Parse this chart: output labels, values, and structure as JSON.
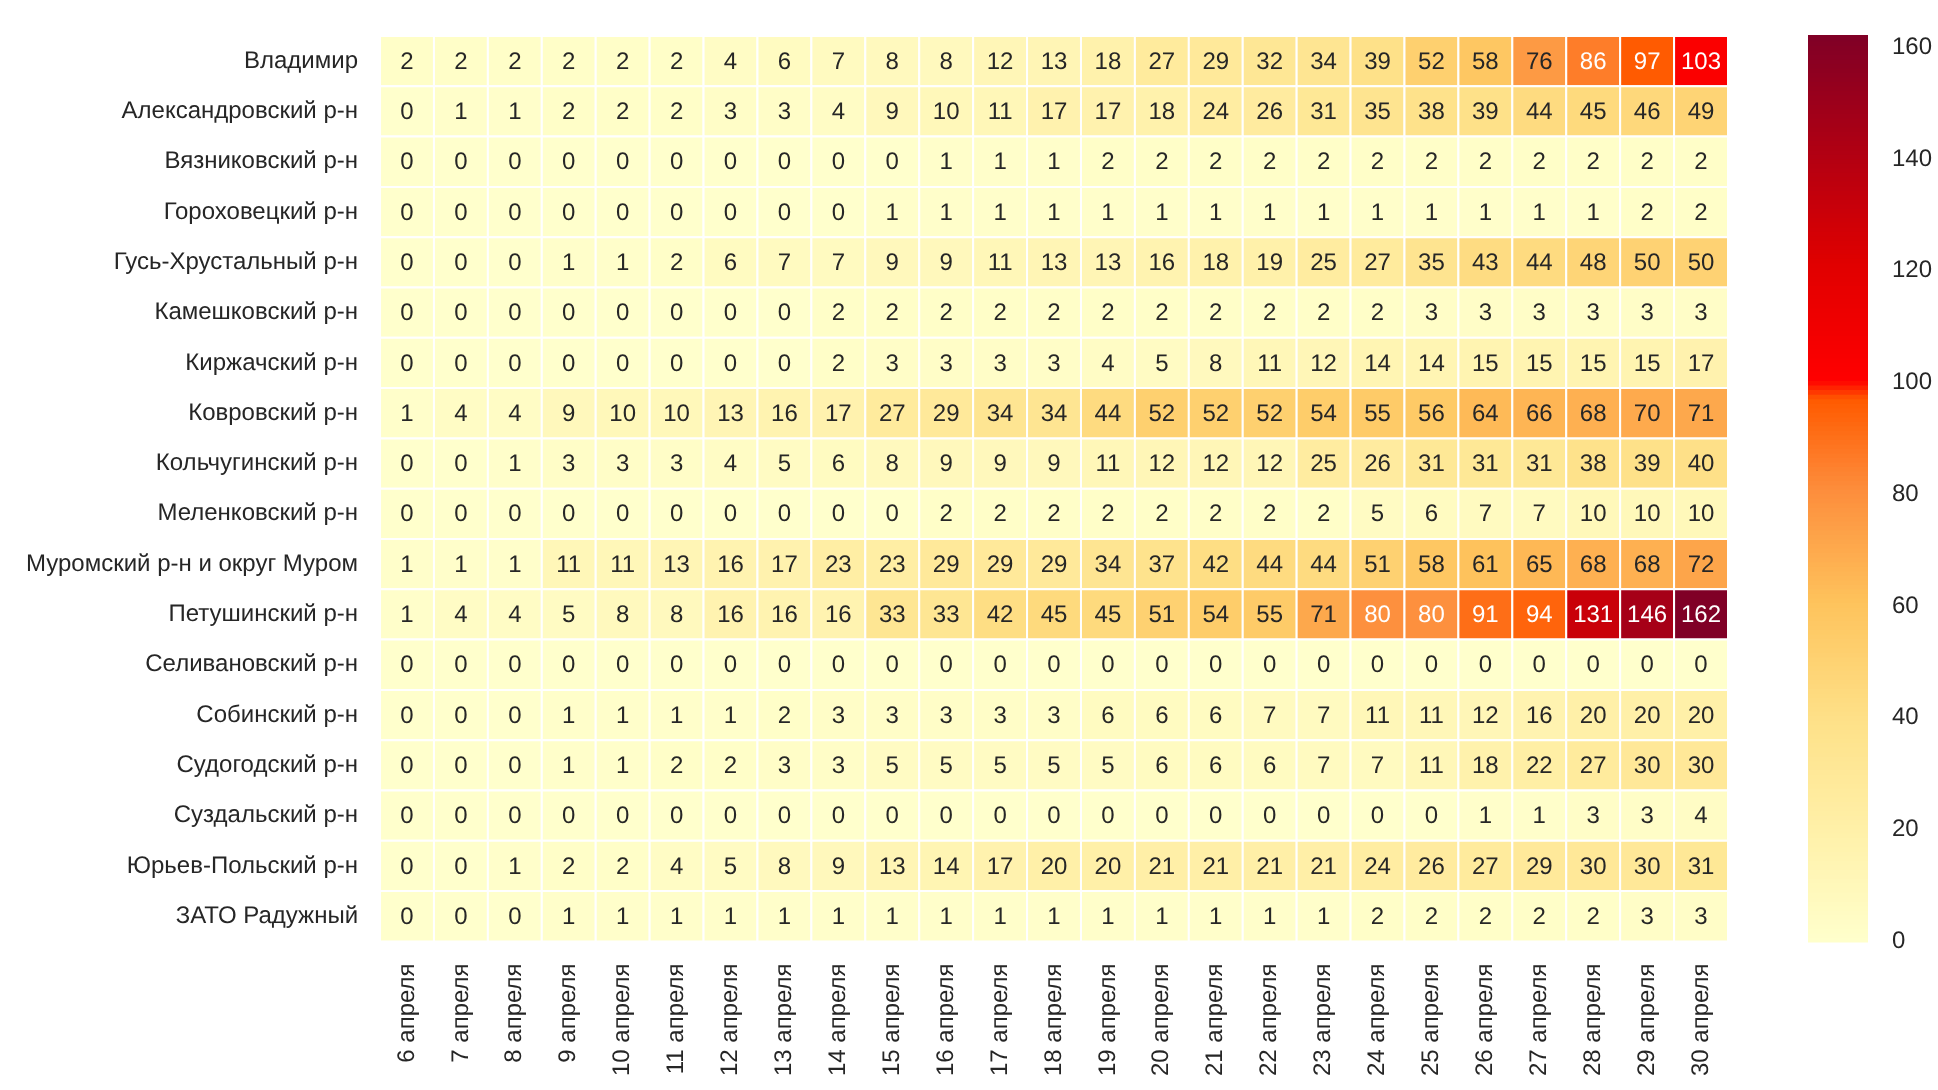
{
  "chart_data": {
    "type": "heatmap",
    "categories": [
      "6 апреля",
      "7 апреля",
      "8 апреля",
      "9 апреля",
      "10 апреля",
      "11 апреля",
      "12 апреля",
      "13 апреля",
      "14 апреля",
      "15 апреля",
      "16 апреля",
      "17 апреля",
      "18 апреля",
      "19 апреля",
      "20 апреля",
      "21 апреля",
      "22 апреля",
      "23 апреля",
      "24 апреля",
      "25 апреля",
      "26 апреля",
      "27 апреля",
      "28 апреля",
      "29 апреля",
      "30 апреля"
    ],
    "y_categories": [
      "Владимир",
      "Александровский р-н",
      "Вязниковский р-н",
      "Гороховецкий р-н",
      "Гусь-Хрустальный р-н",
      "Камешковский р-н",
      "Киржачский р-н",
      "Ковровский р-н",
      "Кольчугинский р-н",
      "Меленковский р-н",
      "Муромский р-н и округ Муром",
      "Петушинский р-н",
      "Селивановский р-н",
      "Собинский р-н",
      "Судогодский р-н",
      "Суздальский р-н",
      "Юрьев-Польский р-н",
      "ЗАТО Радужный"
    ],
    "cells": [
      [
        2,
        2,
        2,
        2,
        2,
        2,
        4,
        6,
        7,
        8,
        8,
        12,
        13,
        18,
        27,
        29,
        32,
        34,
        39,
        52,
        58,
        76,
        86,
        97,
        103
      ],
      [
        0,
        1,
        1,
        2,
        2,
        2,
        3,
        3,
        4,
        9,
        10,
        11,
        17,
        17,
        18,
        24,
        26,
        31,
        35,
        38,
        39,
        44,
        45,
        46,
        49
      ],
      [
        0,
        0,
        0,
        0,
        0,
        0,
        0,
        0,
        0,
        0,
        1,
        1,
        1,
        2,
        2,
        2,
        2,
        2,
        2,
        2,
        2,
        2,
        2,
        2,
        2
      ],
      [
        0,
        0,
        0,
        0,
        0,
        0,
        0,
        0,
        0,
        1,
        1,
        1,
        1,
        1,
        1,
        1,
        1,
        1,
        1,
        1,
        1,
        1,
        1,
        2,
        2
      ],
      [
        0,
        0,
        0,
        1,
        1,
        2,
        6,
        7,
        7,
        9,
        9,
        11,
        13,
        13,
        16,
        18,
        19,
        25,
        27,
        35,
        43,
        44,
        48,
        50,
        50
      ],
      [
        0,
        0,
        0,
        0,
        0,
        0,
        0,
        0,
        2,
        2,
        2,
        2,
        2,
        2,
        2,
        2,
        2,
        2,
        2,
        3,
        3,
        3,
        3,
        3,
        3
      ],
      [
        0,
        0,
        0,
        0,
        0,
        0,
        0,
        0,
        2,
        3,
        3,
        3,
        3,
        4,
        5,
        8,
        11,
        12,
        14,
        14,
        15,
        15,
        15,
        15,
        17
      ],
      [
        1,
        4,
        4,
        9,
        10,
        10,
        13,
        16,
        17,
        27,
        29,
        34,
        34,
        44,
        52,
        52,
        52,
        54,
        55,
        56,
        64,
        66,
        68,
        70,
        71
      ],
      [
        0,
        0,
        1,
        3,
        3,
        3,
        4,
        5,
        6,
        8,
        9,
        9,
        9,
        11,
        12,
        12,
        12,
        25,
        26,
        31,
        31,
        31,
        38,
        39,
        40
      ],
      [
        0,
        0,
        0,
        0,
        0,
        0,
        0,
        0,
        0,
        0,
        2,
        2,
        2,
        2,
        2,
        2,
        2,
        2,
        5,
        6,
        7,
        7,
        10,
        10,
        10
      ],
      [
        1,
        1,
        1,
        11,
        11,
        13,
        16,
        17,
        23,
        23,
        29,
        29,
        29,
        34,
        37,
        42,
        44,
        44,
        51,
        58,
        61,
        65,
        68,
        68,
        72
      ],
      [
        1,
        4,
        4,
        5,
        8,
        8,
        16,
        16,
        16,
        33,
        33,
        42,
        45,
        45,
        51,
        54,
        55,
        71,
        80,
        80,
        91,
        94,
        131,
        146,
        162
      ],
      [
        0,
        0,
        0,
        0,
        0,
        0,
        0,
        0,
        0,
        0,
        0,
        0,
        0,
        0,
        0,
        0,
        0,
        0,
        0,
        0,
        0,
        0,
        0,
        0,
        0
      ],
      [
        0,
        0,
        0,
        1,
        1,
        1,
        1,
        2,
        3,
        3,
        3,
        3,
        3,
        6,
        6,
        6,
        7,
        7,
        11,
        11,
        12,
        16,
        20,
        20,
        20
      ],
      [
        0,
        0,
        0,
        1,
        1,
        2,
        2,
        3,
        3,
        5,
        5,
        5,
        5,
        5,
        6,
        6,
        6,
        7,
        7,
        11,
        18,
        22,
        27,
        30,
        30
      ],
      [
        0,
        0,
        0,
        0,
        0,
        0,
        0,
        0,
        0,
        0,
        0,
        0,
        0,
        0,
        0,
        0,
        0,
        0,
        0,
        0,
        1,
        1,
        3,
        3,
        4
      ],
      [
        0,
        0,
        1,
        2,
        2,
        4,
        5,
        8,
        9,
        13,
        14,
        17,
        20,
        20,
        21,
        21,
        21,
        21,
        24,
        26,
        27,
        29,
        30,
        30,
        31
      ],
      [
        0,
        0,
        0,
        1,
        1,
        1,
        1,
        1,
        1,
        1,
        1,
        1,
        1,
        1,
        1,
        1,
        1,
        1,
        2,
        2,
        2,
        2,
        2,
        3,
        3
      ]
    ],
    "clim": [
      0,
      162
    ],
    "cticks": [
      0,
      20,
      40,
      60,
      80,
      100,
      120,
      140,
      160
    ],
    "data_labels": true
  }
}
